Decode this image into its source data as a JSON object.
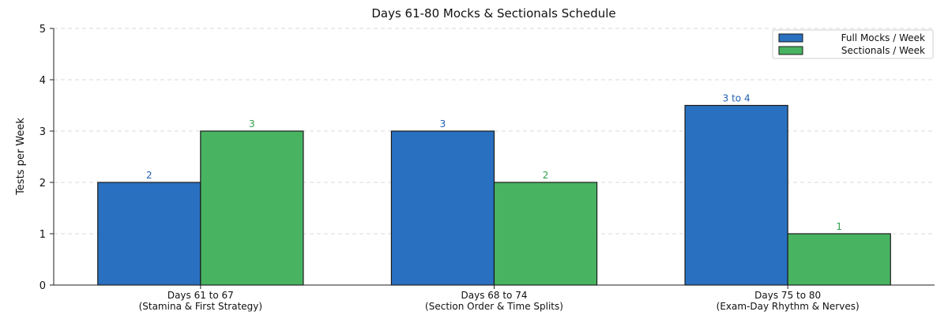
{
  "chart_data": {
    "type": "bar",
    "title": "Days 61-80 Mocks & Sectionals Schedule",
    "xlabel": "",
    "ylabel": "Tests per Week",
    "ylim": [
      0,
      5
    ],
    "yticks": [
      0,
      1,
      2,
      3,
      4,
      5
    ],
    "grid": true,
    "legend_position": "top-right",
    "categories": [
      [
        "Days 61 to 67",
        "(Stamina & First Strategy)"
      ],
      [
        "Days 68 to 74",
        "(Section Order & Time Splits)"
      ],
      [
        "Days 75 to 80",
        "(Exam-Day Rhythm & Nerves)"
      ]
    ],
    "series": [
      {
        "name": "Full Mocks / Week",
        "color": "#2970C0",
        "label_color": "#1F5FAF",
        "values": [
          2,
          3,
          3.5
        ],
        "labels": [
          "2",
          "3",
          "3 to 4"
        ]
      },
      {
        "name": "Sectionals / Week",
        "color": "#48B462",
        "label_color": "#2E9E4A",
        "values": [
          3,
          2,
          1
        ],
        "labels": [
          "3",
          "2",
          "1"
        ]
      }
    ]
  }
}
